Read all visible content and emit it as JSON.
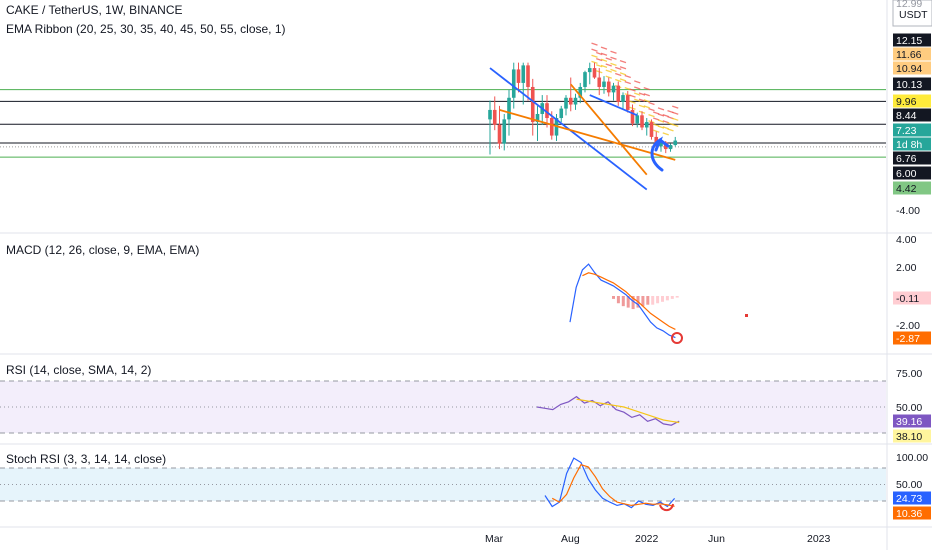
{
  "header": {
    "symbol_line": "CAKE / TetherUS, 1W, BINANCE",
    "ema_line": "EMA Ribbon (20, 25, 30, 35, 40, 45, 50, 55, close, 1)",
    "currency_badge": "USDT",
    "partial_top_label": "12.99"
  },
  "panes": {
    "macd_label": "MACD (12, 26, close, 9, EMA, EMA)",
    "rsi_label": "RSI (14, close, SMA, 14, 2)",
    "stoch_label": "Stoch RSI (3, 3, 14, 14, close)"
  },
  "time_axis": [
    "Mar",
    "Aug",
    "2022",
    "Jun",
    "2023"
  ],
  "colors": {
    "up": "#26a69a",
    "down": "#ef5350",
    "trendline_blue": "#2962ff",
    "trendline_orange": "#f57c00",
    "ema_ribbon": "#f5c518",
    "rsi_line": "#7e57c2",
    "rsi_ma": "#f5c518",
    "stoch_k": "#2962ff",
    "stoch_d": "#ff6d00",
    "annotation": "#e53935",
    "rsi_band": "#f3eefb",
    "stoch_band": "#e6f4fb"
  },
  "chart_data": [
    {
      "type": "candlestick",
      "title": "CAKE / TetherUS, 1W, BINANCE",
      "ylim": [
        -4.42,
        12.99
      ],
      "price_axis_labels": [
        {
          "text": "12.15",
          "value": 12.15,
          "style": "dark"
        },
        {
          "text": "11.66",
          "value": 11.66,
          "style": "light-orange"
        },
        {
          "text": "10.94",
          "value": 10.94,
          "style": "light-orange"
        },
        {
          "text": "10.13",
          "value": 10.13,
          "style": "dark"
        },
        {
          "text": "9.96",
          "value": 9.96,
          "style": "yellow"
        },
        {
          "text": "8.44",
          "value": 8.44,
          "style": "dark"
        },
        {
          "text": "7.23",
          "value": 7.23,
          "style": "teal"
        },
        {
          "text": "1d 8h",
          "value": 6.95,
          "style": "teal"
        },
        {
          "text": "6.76",
          "value": 6.76,
          "style": "dark"
        },
        {
          "text": "6.00",
          "value": 6.0,
          "style": "dark"
        },
        {
          "text": "4.42",
          "value": 4.42,
          "style": "green"
        },
        {
          "text": "-4.00",
          "value": -4.0,
          "style": "plain"
        }
      ],
      "horizontal_levels": [
        {
          "value": 11.0,
          "color": "#4caf50"
        },
        {
          "value": 10.13,
          "color": "#131722"
        },
        {
          "value": 8.44,
          "color": "#131722"
        },
        {
          "value": 7.05,
          "color": "#131722"
        },
        {
          "value": 6.76,
          "color": "#9e9e9e",
          "dotted": true
        },
        {
          "value": 6.0,
          "color": "#4caf50"
        }
      ],
      "candles": [
        {
          "o": 8.8,
          "h": 10.2,
          "l": 6.2,
          "c": 9.5
        },
        {
          "o": 9.5,
          "h": 10.5,
          "l": 8.0,
          "c": 8.4
        },
        {
          "o": 8.4,
          "h": 9.8,
          "l": 6.6,
          "c": 7.0
        },
        {
          "o": 7.0,
          "h": 9.2,
          "l": 6.5,
          "c": 8.8
        },
        {
          "o": 8.8,
          "h": 11.0,
          "l": 7.6,
          "c": 10.4
        },
        {
          "o": 10.4,
          "h": 13.0,
          "l": 9.6,
          "c": 12.5
        },
        {
          "o": 12.5,
          "h": 13.0,
          "l": 10.8,
          "c": 11.5
        },
        {
          "o": 11.5,
          "h": 13.0,
          "l": 9.9,
          "c": 12.8
        },
        {
          "o": 12.8,
          "h": 13.0,
          "l": 10.2,
          "c": 11.2
        },
        {
          "o": 11.2,
          "h": 11.8,
          "l": 7.6,
          "c": 8.6
        },
        {
          "o": 8.6,
          "h": 9.8,
          "l": 7.2,
          "c": 9.2
        },
        {
          "o": 9.2,
          "h": 10.6,
          "l": 8.4,
          "c": 10.0
        },
        {
          "o": 10.0,
          "h": 10.6,
          "l": 8.2,
          "c": 8.9
        },
        {
          "o": 8.9,
          "h": 9.4,
          "l": 7.3,
          "c": 7.6
        },
        {
          "o": 7.6,
          "h": 9.2,
          "l": 7.2,
          "c": 8.9
        },
        {
          "o": 8.9,
          "h": 9.8,
          "l": 8.6,
          "c": 9.6
        },
        {
          "o": 9.6,
          "h": 10.6,
          "l": 9.1,
          "c": 10.4
        },
        {
          "o": 10.4,
          "h": 11.9,
          "l": 9.4,
          "c": 9.9
        },
        {
          "o": 9.9,
          "h": 10.7,
          "l": 9.5,
          "c": 10.4
        },
        {
          "o": 10.4,
          "h": 11.5,
          "l": 10.0,
          "c": 11.2
        },
        {
          "o": 11.2,
          "h": 12.4,
          "l": 10.8,
          "c": 12.3
        },
        {
          "o": 12.3,
          "h": 13.0,
          "l": 11.4,
          "c": 12.6
        },
        {
          "o": 12.6,
          "h": 13.0,
          "l": 11.8,
          "c": 11.9
        },
        {
          "o": 11.9,
          "h": 12.6,
          "l": 10.6,
          "c": 11.2
        },
        {
          "o": 11.2,
          "h": 12.0,
          "l": 10.7,
          "c": 11.6
        },
        {
          "o": 11.6,
          "h": 11.9,
          "l": 10.5,
          "c": 10.8
        },
        {
          "o": 10.8,
          "h": 11.5,
          "l": 10.2,
          "c": 11.3
        },
        {
          "o": 11.3,
          "h": 11.6,
          "l": 9.8,
          "c": 10.1
        },
        {
          "o": 10.1,
          "h": 10.8,
          "l": 9.6,
          "c": 10.6
        },
        {
          "o": 10.6,
          "h": 10.9,
          "l": 9.3,
          "c": 9.5
        },
        {
          "o": 9.5,
          "h": 9.9,
          "l": 8.3,
          "c": 8.5
        },
        {
          "o": 8.5,
          "h": 9.3,
          "l": 8.2,
          "c": 9.1
        },
        {
          "o": 9.1,
          "h": 9.4,
          "l": 8.0,
          "c": 8.2
        },
        {
          "o": 8.2,
          "h": 8.9,
          "l": 7.6,
          "c": 8.6
        },
        {
          "o": 8.6,
          "h": 8.8,
          "l": 7.3,
          "c": 7.5
        },
        {
          "o": 7.5,
          "h": 7.9,
          "l": 6.6,
          "c": 6.8
        },
        {
          "o": 6.8,
          "h": 7.4,
          "l": 6.4,
          "c": 7.1
        },
        {
          "o": 7.1,
          "h": 7.2,
          "l": 6.3,
          "c": 6.6
        },
        {
          "o": 6.6,
          "h": 7.0,
          "l": 6.4,
          "c": 6.9
        },
        {
          "o": 6.9,
          "h": 7.5,
          "l": 6.8,
          "c": 7.23
        }
      ],
      "trendlines": [
        {
          "color": "blue",
          "from": [
            0,
            12.6
          ],
          "to": [
            33,
            3.6
          ]
        },
        {
          "color": "orange",
          "from": [
            2,
            9.5
          ],
          "to": [
            39,
            5.8
          ]
        },
        {
          "color": "orange",
          "from": [
            17,
            11.4
          ],
          "to": [
            33,
            4.7
          ]
        },
        {
          "color": "blue",
          "from": [
            21,
            10.6
          ],
          "to": [
            31,
            9.1
          ]
        }
      ]
    },
    {
      "type": "line",
      "title": "MACD (12, 26, close, 9, EMA, EMA)",
      "ylim": [
        -3.2,
        4.5
      ],
      "axis_ticks": [
        4.0,
        2.0,
        -2.0
      ],
      "value_labels": [
        {
          "text": "-0.11",
          "value": -0.11
        },
        {
          "text": "-2.87",
          "value": -2.87
        }
      ],
      "series": [
        {
          "key": "macd",
          "values": [
            -1.8,
            0.6,
            1.8,
            2.2,
            1.6,
            1.1,
            0.9,
            0.7,
            0.4,
            0.1,
            -0.3,
            -0.6,
            -1.2,
            -1.8,
            -2.2,
            -2.4,
            -2.7,
            -2.87
          ]
        },
        {
          "key": "signal",
          "values": [
            null,
            null,
            1.4,
            1.6,
            1.5,
            1.3,
            1.1,
            0.9,
            0.6,
            0.3,
            -0.1,
            -0.4,
            -0.8,
            -1.2,
            -1.5,
            -1.8,
            -2.1,
            -2.3
          ]
        }
      ],
      "histogram": [
        -0.2,
        -0.5,
        -0.7,
        -0.8,
        -0.9,
        -0.8,
        -0.7,
        -0.6,
        -0.6,
        -0.5,
        -0.4,
        -0.3,
        -0.2,
        -0.11
      ]
    },
    {
      "type": "line",
      "title": "RSI (14, close, SMA, 14, 2)",
      "ylim": [
        30,
        80
      ],
      "axis_ticks": [
        75.0,
        50.0
      ],
      "band": [
        30,
        70
      ],
      "value_labels": [
        {
          "text": "39.16",
          "value": 39.16
        },
        {
          "text": "38.10",
          "value": 38.1
        }
      ],
      "series": [
        {
          "key": "rsi",
          "values": [
            50,
            49,
            48,
            52,
            54,
            58,
            53,
            55,
            51,
            54,
            48,
            46,
            42,
            44,
            39,
            41,
            37,
            36,
            39.16
          ]
        },
        {
          "key": "rsi_ma",
          "values": [
            null,
            null,
            null,
            null,
            null,
            56,
            55,
            54,
            53,
            52,
            51,
            50,
            48,
            46,
            44,
            42,
            40,
            39,
            38.1
          ]
        }
      ]
    },
    {
      "type": "line",
      "title": "Stoch RSI (3, 3, 14, 14, close)",
      "ylim": [
        0,
        105
      ],
      "axis_ticks": [
        100.0,
        50.0
      ],
      "band": [
        20,
        80
      ],
      "value_labels": [
        {
          "text": "24.73",
          "value": 24.73
        },
        {
          "text": "10.36",
          "value": 10.36
        }
      ],
      "series": [
        {
          "key": "k",
          "values": [
            30,
            10,
            18,
            70,
            98,
            90,
            60,
            40,
            25,
            18,
            12,
            15,
            8,
            20,
            14,
            12,
            18,
            10,
            24.73
          ]
        },
        {
          "key": "d",
          "values": [
            null,
            25,
            18,
            32,
            62,
            86,
            82,
            64,
            42,
            28,
            18,
            15,
            12,
            14,
            16,
            14,
            15,
            13,
            10.36
          ]
        }
      ]
    }
  ]
}
